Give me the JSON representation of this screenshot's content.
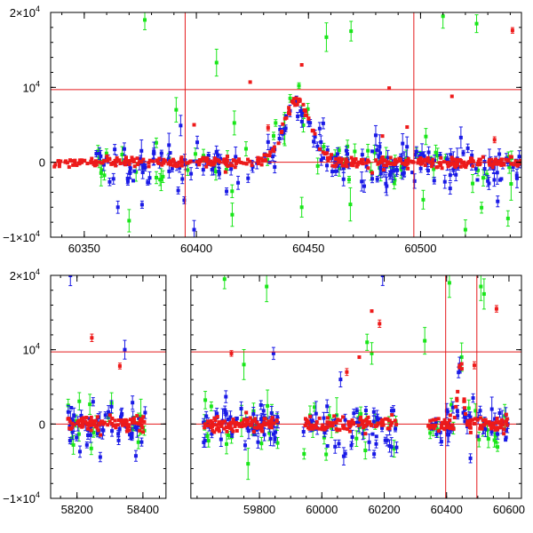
{
  "colors": {
    "blue": "#1a1ae6",
    "green": "#19e619",
    "red": "#ee1a1a",
    "reference_line": "#e41a1c",
    "axis": "#000000"
  },
  "chart_data": [
    {
      "type": "scatter",
      "title": "",
      "xlabel": "",
      "ylabel": "",
      "xlim": [
        60335,
        60545
      ],
      "ylim": [
        -10000,
        20000
      ],
      "grid": false,
      "legend": "none",
      "x_ticks": [
        {
          "value": 60350,
          "label": "60350"
        },
        {
          "value": 60400,
          "label": "60400"
        },
        {
          "value": 60450,
          "label": "60450"
        },
        {
          "value": 60500,
          "label": "60500"
        }
      ],
      "y_ticks": [
        {
          "value": 20000,
          "label": "2×10",
          "exp": "4"
        },
        {
          "value": 10000,
          "label": "10",
          "exp": "4"
        },
        {
          "value": 0,
          "label": "0",
          "exp": ""
        },
        {
          "value": -10000,
          "label": "−1×10",
          "exp": "4"
        }
      ],
      "reference_lines": {
        "vertical": [
          60395,
          60497
        ],
        "horizontal": [
          9700
        ]
      },
      "flare": {
        "center": 60445,
        "peak": 8200,
        "width": 6
      },
      "series": [
        {
          "color": "blue",
          "x_range": [
            60355,
            60545
          ],
          "typical_scatter": 1800,
          "outliers": [
            [
              60393,
              4900
            ],
            [
              60399,
              -9000
            ],
            [
              60455,
              4500
            ],
            [
              60480,
              3600
            ],
            [
              60492,
              2500
            ],
            [
              60518,
              3300
            ],
            [
              60530,
              -2500
            ],
            [
              60365,
              -6000
            ],
            [
              60432,
              2700
            ]
          ]
        },
        {
          "color": "green",
          "x_range": [
            60355,
            60545
          ],
          "typical_scatter": 2500,
          "outliers": [
            [
              60377,
              19000
            ],
            [
              60409,
              13300
            ],
            [
              60458,
              16700
            ],
            [
              60469,
              17500
            ],
            [
              60510,
              19500
            ],
            [
              60525,
              18500
            ],
            [
              60391,
              7000
            ],
            [
              60370,
              -7800
            ],
            [
              60416,
              -7000
            ],
            [
              60539,
              -7500
            ],
            [
              60447,
              -6000
            ],
            [
              60520,
              -9000
            ]
          ]
        },
        {
          "color": "red",
          "x_range": [
            60336,
            60545
          ],
          "typical_scatter": 500,
          "outliers": [
            [
              60541,
              17600
            ],
            [
              60424,
              10700
            ],
            [
              60486,
              9900
            ],
            [
              60447,
              13000
            ],
            [
              60533,
              3000
            ],
            [
              60514,
              8800
            ],
            [
              60399,
              5000
            ],
            [
              60432,
              4600
            ],
            [
              60483,
              3500
            ],
            [
              60494,
              4700
            ],
            [
              60413,
              -1300
            ]
          ]
        }
      ]
    },
    {
      "type": "scatter",
      "title": "",
      "xlabel": "",
      "ylabel": "",
      "xlim": [
        58120,
        60640
      ],
      "ylim": [
        -10000,
        20000
      ],
      "broken_axis": {
        "segments": [
          [
            58120,
            58470
          ],
          [
            59580,
            60640
          ]
        ],
        "screen_split": 0.245
      },
      "grid": false,
      "legend": "none",
      "x_ticks": [
        {
          "value": 58200,
          "label": "58200"
        },
        {
          "value": 58400,
          "label": "58400"
        },
        {
          "value": 59800,
          "label": "59800"
        },
        {
          "value": 60000,
          "label": "60000"
        },
        {
          "value": 60200,
          "label": "60200"
        },
        {
          "value": 60400,
          "label": "60400"
        },
        {
          "value": 60600,
          "label": "60600"
        }
      ],
      "y_ticks": [
        {
          "value": 20000,
          "label": "2×10",
          "exp": "4"
        },
        {
          "value": 10000,
          "label": "10",
          "exp": "4"
        },
        {
          "value": 0,
          "label": "0",
          "exp": ""
        },
        {
          "value": -10000,
          "label": "−1×10",
          "exp": "4"
        }
      ],
      "reference_lines": {
        "vertical": [
          60397,
          60497
        ],
        "horizontal": [
          9700
        ]
      },
      "observing_seasons": [
        [
          58170,
          58410
        ],
        [
          59620,
          59860
        ],
        [
          59940,
          60240
        ],
        [
          60340,
          60600
        ]
      ],
      "flare": {
        "center": 60445,
        "peak": 8500,
        "width": 8
      },
      "series": [
        {
          "color": "blue",
          "typical_scatter": 2000,
          "outliers": [
            [
              58180,
              20000
            ],
            [
              58345,
              10000
            ],
            [
              60195,
              20000
            ],
            [
              59845,
              9500
            ],
            [
              60060,
              6000
            ]
          ]
        },
        {
          "color": "green",
          "typical_scatter": 2700,
          "outliers": [
            [
              59688,
              19500
            ],
            [
              59823,
              18500
            ],
            [
              60145,
              11000
            ],
            [
              60330,
              11200
            ],
            [
              60160,
              9500
            ],
            [
              60510,
              18500
            ],
            [
              60520,
              17500
            ],
            [
              60409,
              19000
            ],
            [
              59750,
              8000
            ]
          ]
        },
        {
          "color": "red",
          "typical_scatter": 700,
          "outliers": [
            [
              58245,
              11600
            ],
            [
              58330,
              7800
            ],
            [
              59710,
              9500
            ],
            [
              60160,
              15200
            ],
            [
              60185,
              13500
            ],
            [
              60489,
              7900
            ],
            [
              60560,
              15500
            ],
            [
              60080,
              7000
            ],
            [
              60120,
              9000
            ]
          ]
        }
      ]
    }
  ]
}
